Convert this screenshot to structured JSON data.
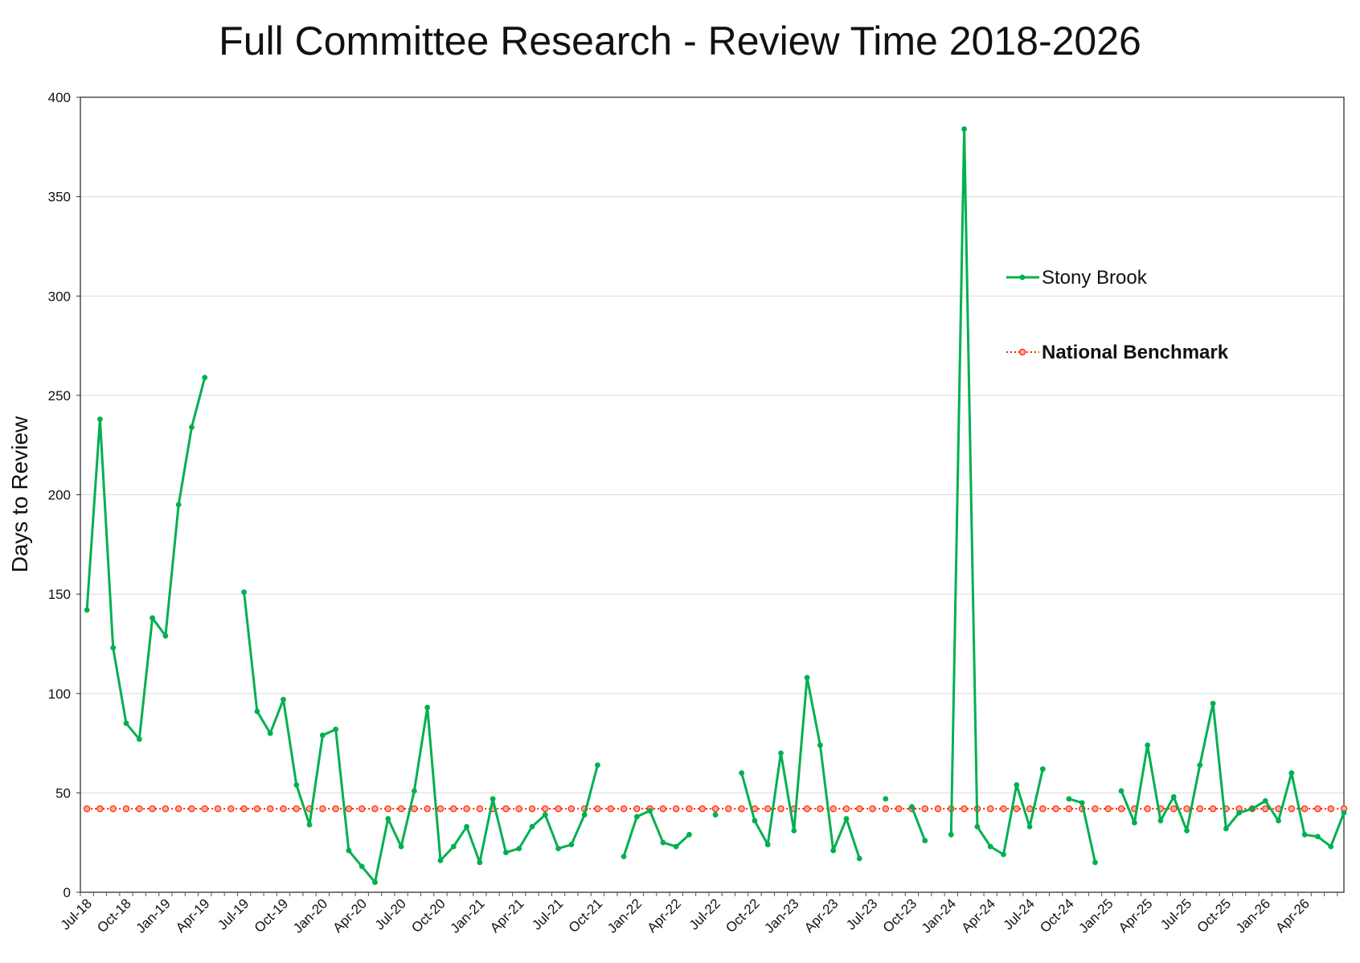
{
  "chart_data": {
    "type": "line",
    "title": "Full Committee Research - Review Time 2018-2026",
    "xlabel": "",
    "ylabel": "Days to Review",
    "ylim": [
      0,
      400
    ],
    "yticks": [
      0,
      50,
      100,
      150,
      200,
      250,
      300,
      350,
      400
    ],
    "grid": true,
    "legend_position": "right",
    "x_tick_labels": [
      "Jul-18",
      "Oct-18",
      "Jan-19",
      "Apr-19",
      "Jul-19",
      "Oct-19",
      "Jan-20",
      "Apr-20",
      "Jul-20",
      "Oct-20",
      "Jan-21",
      "Apr-21",
      "Jul-21",
      "Oct-21",
      "Jan-22",
      "Apr-22",
      "Jul-22",
      "Oct-22",
      "Jan-23",
      "Apr-23",
      "Jul-23",
      "Oct-23",
      "Jan-24",
      "Apr-24",
      "Jul-24",
      "Oct-24",
      "Jan-25",
      "Apr-25",
      "Jul-25",
      "Oct-25",
      "Jan-26",
      "Apr-26"
    ],
    "x": [
      "Jul-18",
      "Aug-18",
      "Sep-18",
      "Oct-18",
      "Nov-18",
      "Dec-18",
      "Jan-19",
      "Feb-19",
      "Mar-19",
      "Apr-19",
      "May-19",
      "Jun-19",
      "Jul-19",
      "Aug-19",
      "Sep-19",
      "Oct-19",
      "Nov-19",
      "Dec-19",
      "Jan-20",
      "Feb-20",
      "Mar-20",
      "Apr-20",
      "May-20",
      "Jun-20",
      "Jul-20",
      "Aug-20",
      "Sep-20",
      "Oct-20",
      "Nov-20",
      "Dec-20",
      "Jan-21",
      "Feb-21",
      "Mar-21",
      "Apr-21",
      "May-21",
      "Jun-21",
      "Jul-21",
      "Aug-21",
      "Sep-21",
      "Oct-21",
      "Nov-21",
      "Dec-21",
      "Jan-22",
      "Feb-22",
      "Mar-22",
      "Apr-22",
      "May-22",
      "Jun-22",
      "Jul-22",
      "Aug-22",
      "Sep-22",
      "Oct-22",
      "Nov-22",
      "Dec-22",
      "Jan-23",
      "Feb-23",
      "Mar-23",
      "Apr-23",
      "May-23",
      "Jun-23",
      "Jul-23",
      "Aug-23",
      "Sep-23",
      "Oct-23",
      "Nov-23",
      "Dec-23",
      "Jan-24",
      "Feb-24",
      "Mar-24",
      "Apr-24",
      "May-24",
      "Jun-24",
      "Jul-24",
      "Aug-24",
      "Sep-24",
      "Oct-24",
      "Nov-24",
      "Dec-24",
      "Jan-25",
      "Feb-25",
      "Mar-25",
      "Apr-25",
      "May-25",
      "Jun-25",
      "Jul-25",
      "Aug-25",
      "Sep-25",
      "Oct-25",
      "Nov-25",
      "Dec-25",
      "Jan-26",
      "Feb-26",
      "Mar-26",
      "Apr-26",
      "May-26",
      "Jun-26",
      "Jul-26"
    ],
    "series": [
      {
        "name": "Stony Brook",
        "color": "#00b050",
        "style": "solid",
        "marker": "dot",
        "values": [
          142,
          238,
          123,
          85,
          77,
          138,
          129,
          195,
          234,
          259,
          null,
          null,
          151,
          91,
          80,
          97,
          54,
          34,
          79,
          82,
          21,
          13,
          5,
          37,
          23,
          51,
          93,
          16,
          23,
          33,
          15,
          47,
          20,
          22,
          33,
          39,
          22,
          24,
          39,
          64,
          null,
          18,
          38,
          41,
          25,
          23,
          29,
          null,
          39,
          null,
          60,
          36,
          24,
          70,
          31,
          108,
          74,
          21,
          37,
          17,
          null,
          47,
          null,
          43,
          26,
          null,
          29,
          384,
          33,
          23,
          19,
          54,
          33,
          62,
          null,
          47,
          45,
          15,
          null,
          51,
          35,
          74,
          36,
          48,
          31,
          64,
          95,
          32,
          40,
          42,
          46,
          36,
          60,
          29,
          28,
          23,
          40
        ]
      },
      {
        "name": "National Benchmark",
        "color": "#ff2200",
        "style": "dotted",
        "marker": "circle",
        "bold_label": true,
        "constant": 42
      }
    ]
  }
}
